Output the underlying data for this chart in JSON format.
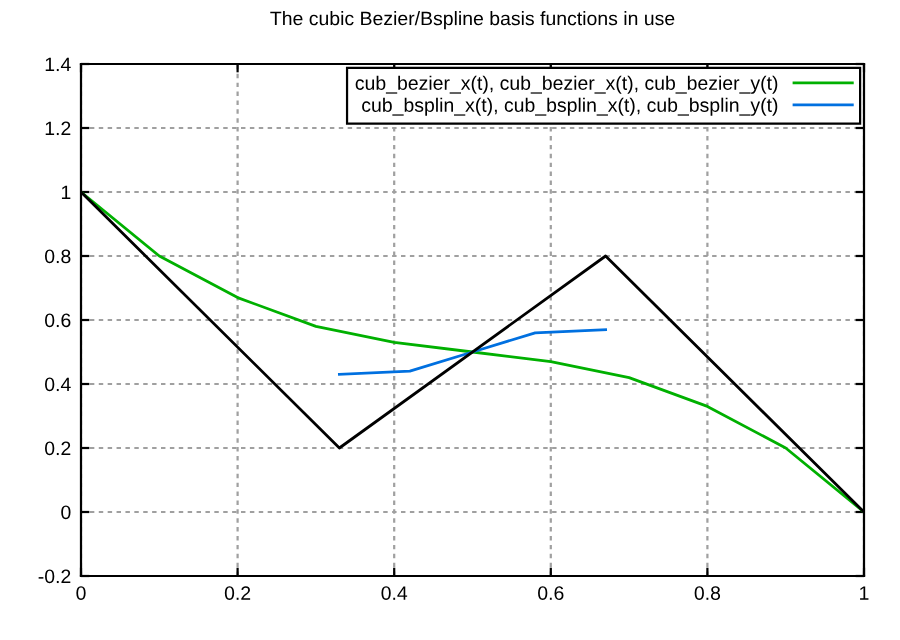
{
  "chart_data": {
    "type": "line",
    "title": "The cubic Bezier/Bspline basis functions in use",
    "series": [
      {
        "name": "cub_bezier_x(t), cub_bezier_x(t), cub_bezier_y(t)",
        "color": "#00b000",
        "x": [
          0,
          0.1,
          0.2,
          0.3,
          0.4,
          0.5,
          0.6,
          0.7,
          0.8,
          0.9,
          1
        ],
        "values": [
          1,
          0.8,
          0.67,
          0.58,
          0.53,
          0.5,
          0.47,
          0.42,
          0.33,
          0.2,
          0
        ]
      },
      {
        "name": "cub_bsplin_x(t), cub_bsplin_x(t), cub_bsplin_y(t)",
        "color": "#0070e0",
        "x": [
          0.33,
          0.42,
          0.5,
          0.58,
          0.67
        ],
        "values": [
          0.43,
          0.44,
          0.5,
          0.56,
          0.57
        ]
      },
      {
        "color": "#000000",
        "x": [
          0,
          0.33,
          0.67,
          1
        ],
        "values": [
          1,
          0.2,
          0.8,
          0
        ]
      }
    ],
    "xlim": [
      0,
      1
    ],
    "xticks": [
      0,
      0.2,
      0.4,
      0.6,
      0.8,
      1
    ],
    "ylim": [
      -0.2,
      1.4
    ],
    "yticks": [
      -0.2,
      0,
      0.2,
      0.4,
      0.6,
      0.8,
      1,
      1.2,
      1.4
    ],
    "grid": true,
    "legend": "top right",
    "marker": "none",
    "line_style": "solid"
  }
}
